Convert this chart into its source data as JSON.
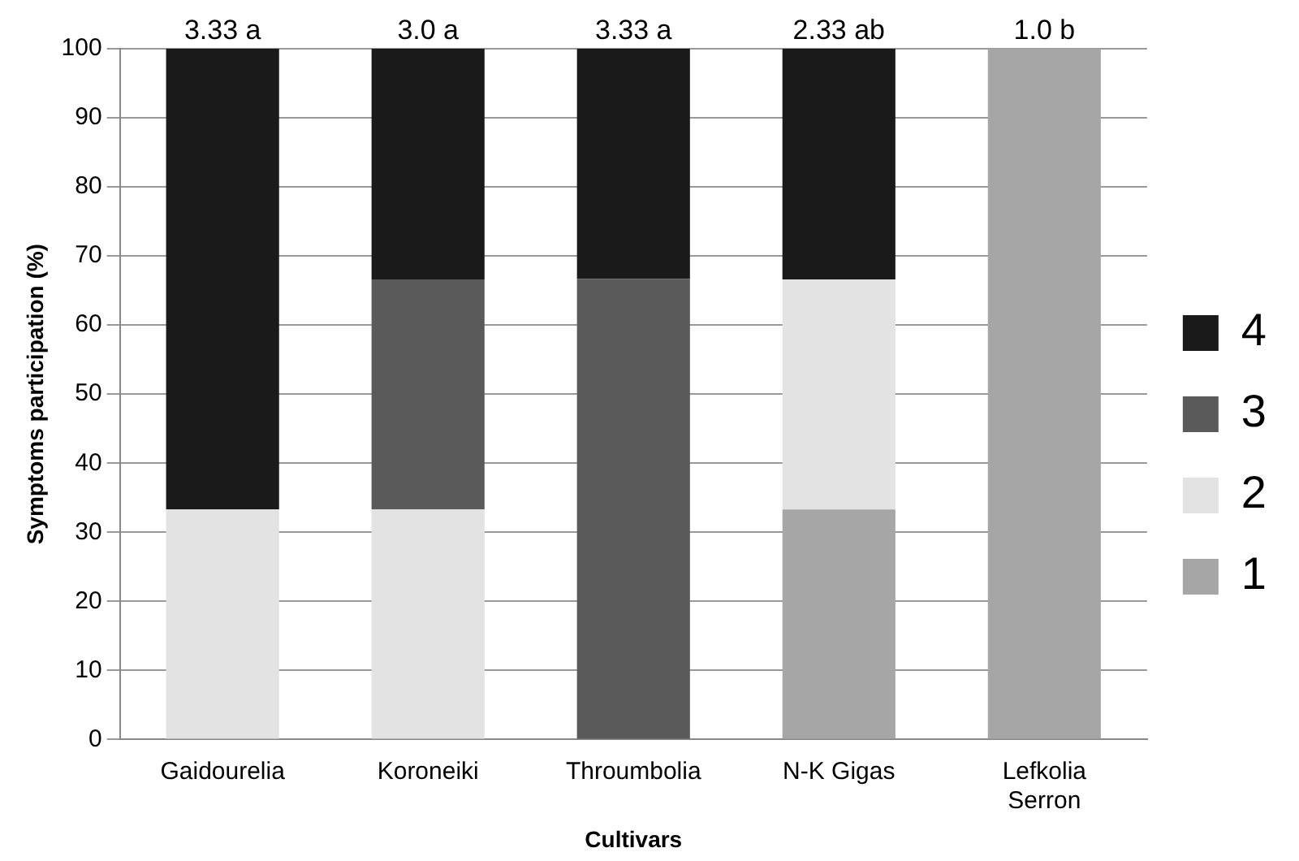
{
  "chart_data": {
    "type": "bar",
    "stacked": true,
    "xlabel": "Cultivars",
    "ylabel": "Symptoms participation (%)",
    "categories": [
      "Gaidourelia",
      "Koroneiki",
      "Throumbolia",
      "N-K Gigas",
      "Lefkolia Serron"
    ],
    "series": [
      {
        "name": "1",
        "color": "#a6a6a6",
        "values": [
          0,
          0,
          0,
          33.3,
          100
        ]
      },
      {
        "name": "2",
        "color": "#e3e3e3",
        "values": [
          33.3,
          33.3,
          0,
          33.3,
          0
        ]
      },
      {
        "name": "3",
        "color": "#5a5a5a",
        "values": [
          0,
          33.3,
          66.7,
          0,
          0
        ]
      },
      {
        "name": "4",
        "color": "#1a1a1a",
        "values": [
          66.7,
          33.4,
          33.3,
          33.4,
          0
        ]
      }
    ],
    "ylim": [
      0,
      100
    ],
    "yticks": [
      0,
      10,
      20,
      30,
      40,
      50,
      60,
      70,
      80,
      90,
      100
    ],
    "grid": "y",
    "legend": "right",
    "annotations": [
      {
        "text": "3.33 a",
        "x": "Gaidourelia",
        "y": 100
      },
      {
        "text": "3.0 a",
        "x": "Koroneiki",
        "y": 100
      },
      {
        "text": "3.33 a",
        "x": "Throumbolia",
        "y": 100
      },
      {
        "text": "2.33 ab",
        "x": "N-K Gigas",
        "y": 100
      },
      {
        "text": "1.0 b",
        "x": "Lefkolia Serron",
        "y": 100
      }
    ]
  }
}
